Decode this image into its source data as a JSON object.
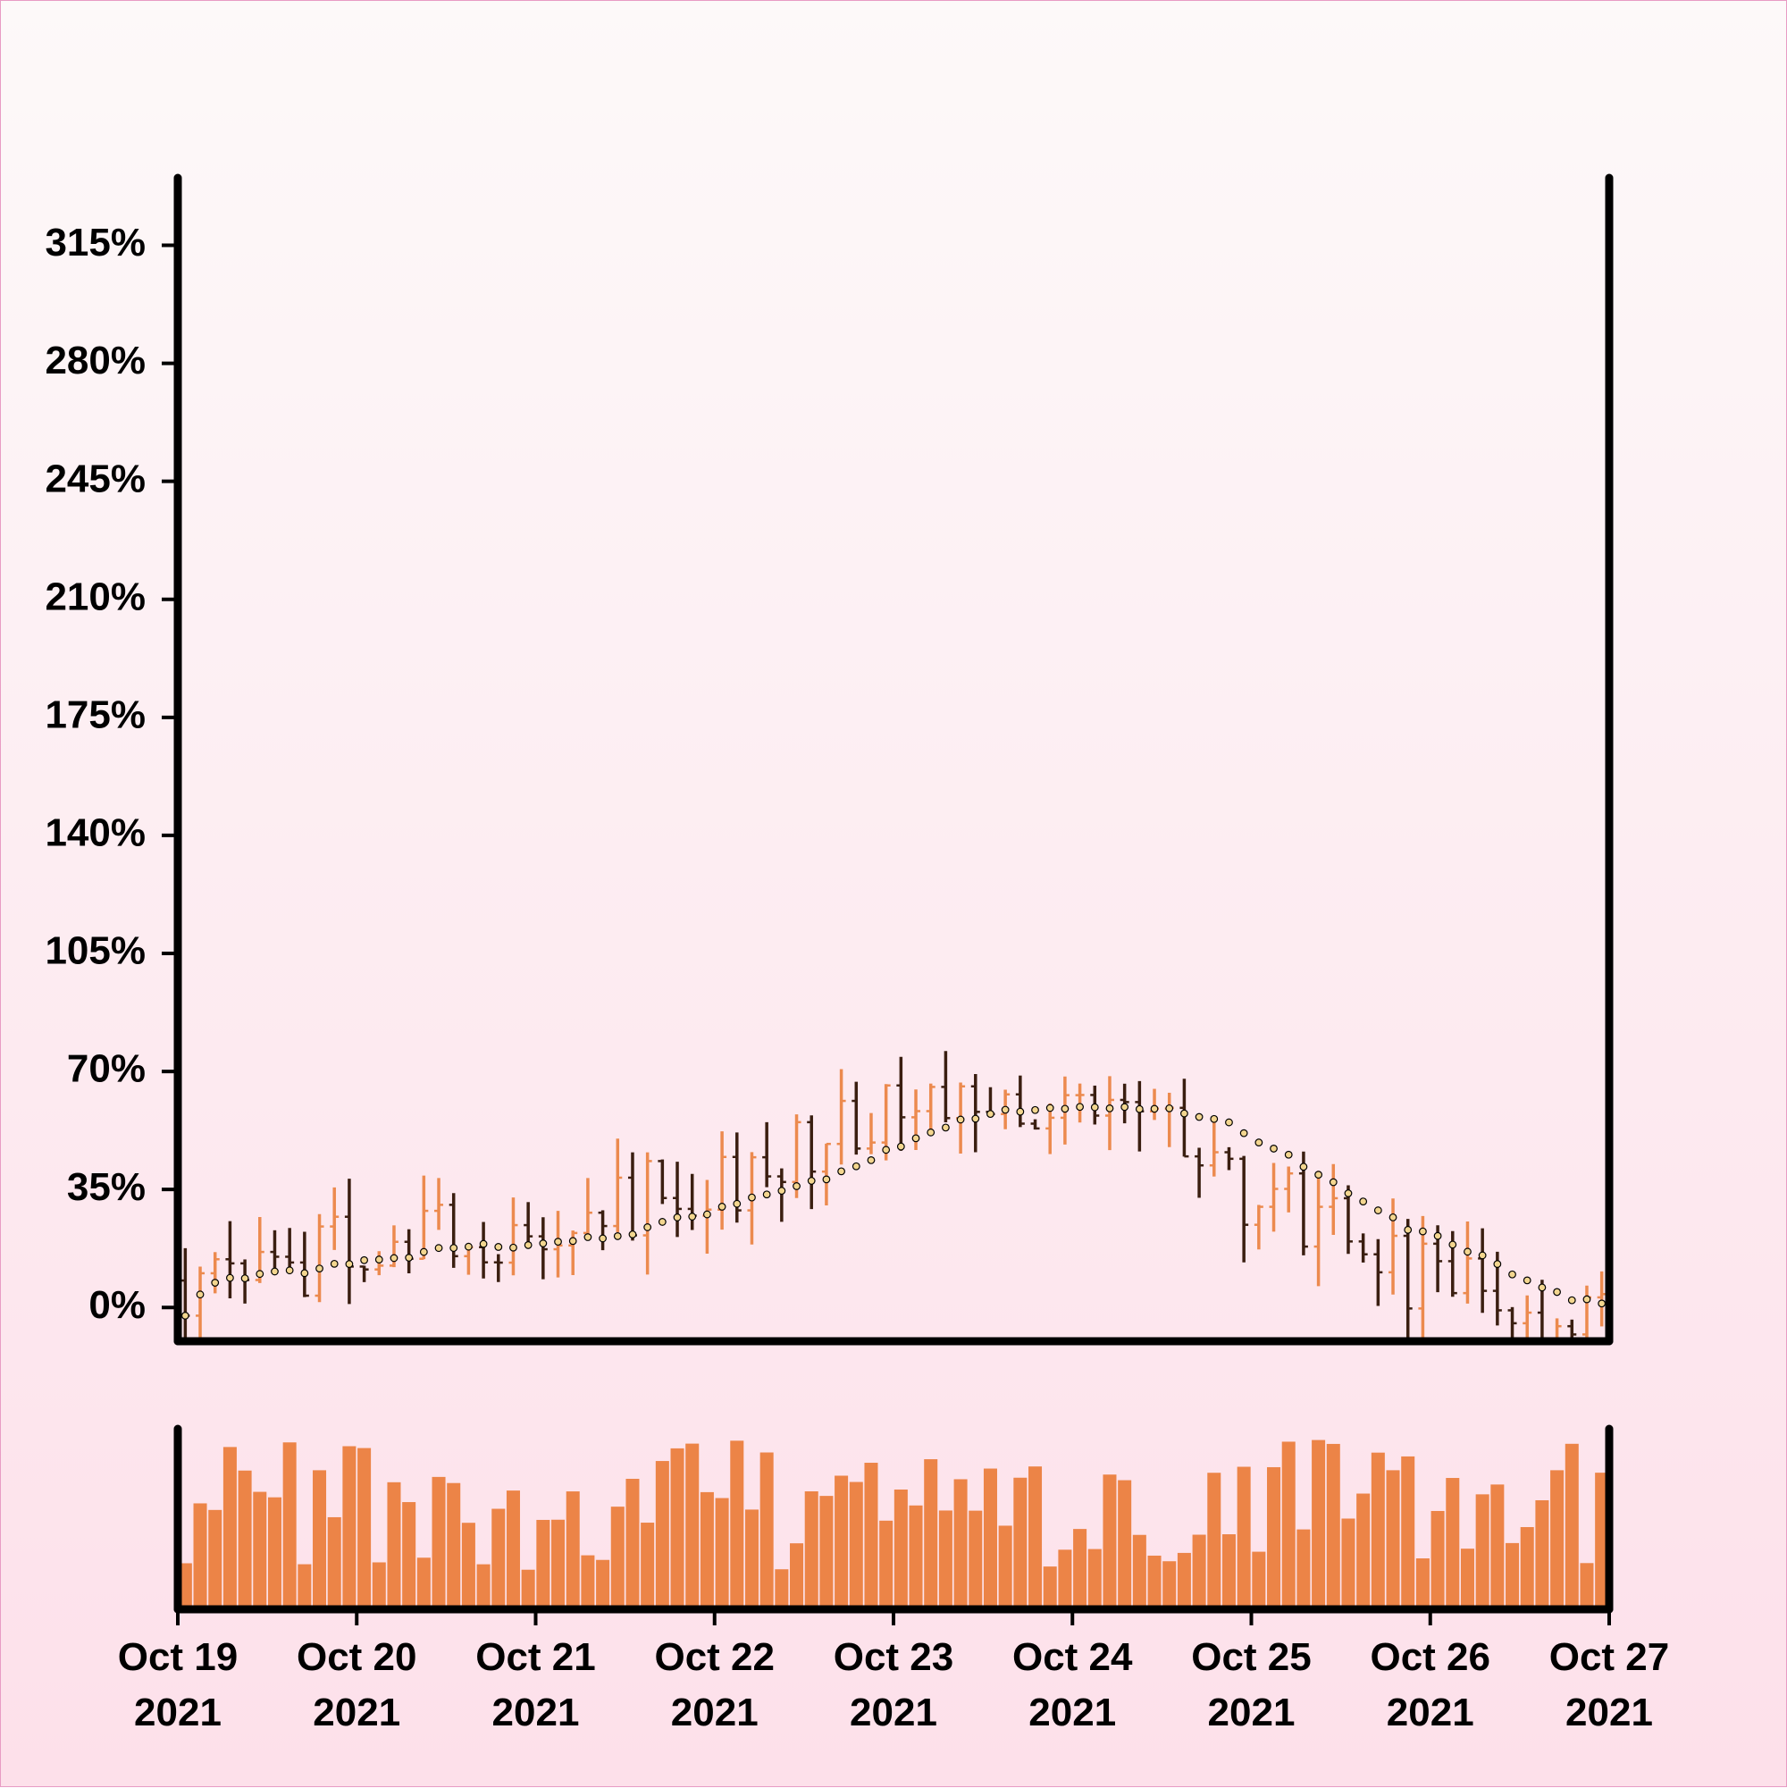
{
  "chart_data": {
    "type": "ohlc",
    "title": "",
    "xlabel": "",
    "ylabel": "",
    "bar_interval_hours": 2,
    "x_range": [
      "2021-10-19 00:00",
      "2021-10-27 00:00"
    ],
    "ylim": [
      -10,
      335
    ],
    "y_unit": "%",
    "y_ticks": [
      "0%",
      "35%",
      "70%",
      "105%",
      "140%",
      "175%",
      "210%",
      "245%",
      "280%",
      "315%"
    ],
    "x_ticks": [
      {
        "month_day": "Oct 19",
        "year": "2021"
      },
      {
        "month_day": "Oct 20",
        "year": "2021"
      },
      {
        "month_day": "Oct 21",
        "year": "2021"
      },
      {
        "month_day": "Oct 22",
        "year": "2021"
      },
      {
        "month_day": "Oct 23",
        "year": "2021"
      },
      {
        "month_day": "Oct 24",
        "year": "2021"
      },
      {
        "month_day": "Oct 25",
        "year": "2021"
      },
      {
        "month_day": "Oct 26",
        "year": "2021"
      },
      {
        "month_day": "Oct 27",
        "year": "2021"
      }
    ],
    "daily_close_approx": [
      {
        "date": "2021-10-19",
        "close": 8
      },
      {
        "date": "2021-10-20",
        "close": 18
      },
      {
        "date": "2021-10-21",
        "close": 22
      },
      {
        "date": "2021-10-22",
        "close": 38
      },
      {
        "date": "2021-10-23",
        "close": 60
      },
      {
        "date": "2021-10-24",
        "close": 65
      },
      {
        "date": "2021-10-25",
        "close": 30
      },
      {
        "date": "2021-10-26",
        "close": 10
      },
      {
        "date": "2021-10-27",
        "close": -3
      }
    ],
    "colors": {
      "up": "#ec8a4e",
      "down": "#3a1e10",
      "moving_average_fill": "#f3d68f",
      "volume": "#ec8447",
      "axis": "#000000",
      "background_top": "#fdf9f9",
      "background_bottom": "#fde0ea"
    },
    "moving_average": "dotted line of filled circles",
    "volume_panel": true,
    "grid": false,
    "legend": "none"
  }
}
